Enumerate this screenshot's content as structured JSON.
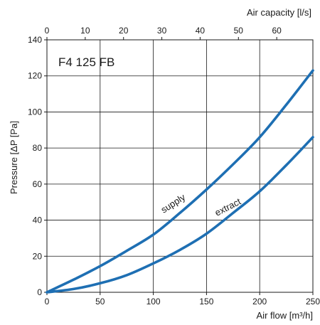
{
  "chart_data": {
    "type": "line",
    "title": "F4 125 FB",
    "xlabel": "Air flow [m³/h]",
    "x2label": "Air capacity [l/s]",
    "ylabel": "Pressure [ΔP [Pa]",
    "xlim": [
      0,
      250
    ],
    "ylim": [
      0,
      140
    ],
    "x2lim": [
      0,
      69.44
    ],
    "x_ticks": [
      0,
      50,
      100,
      150,
      200,
      250
    ],
    "x2_ticks": [
      0,
      10,
      20,
      30,
      40,
      50,
      60
    ],
    "y_ticks": [
      0,
      20,
      40,
      60,
      80,
      100,
      120,
      140
    ],
    "grid": true,
    "line_color": "#1e6fb3",
    "series": [
      {
        "name": "supply",
        "x": [
          0,
          25,
          50,
          75,
          100,
          125,
          150,
          175,
          200,
          225,
          250
        ],
        "y": [
          0,
          7,
          14.5,
          23,
          32,
          44,
          57,
          71,
          86,
          104,
          123
        ]
      },
      {
        "name": "extract",
        "x": [
          0,
          25,
          50,
          75,
          100,
          125,
          150,
          175,
          200,
          225,
          250
        ],
        "y": [
          0,
          1.8,
          5,
          9.5,
          16,
          23.5,
          32.5,
          44,
          56,
          70.5,
          86
        ]
      }
    ]
  }
}
